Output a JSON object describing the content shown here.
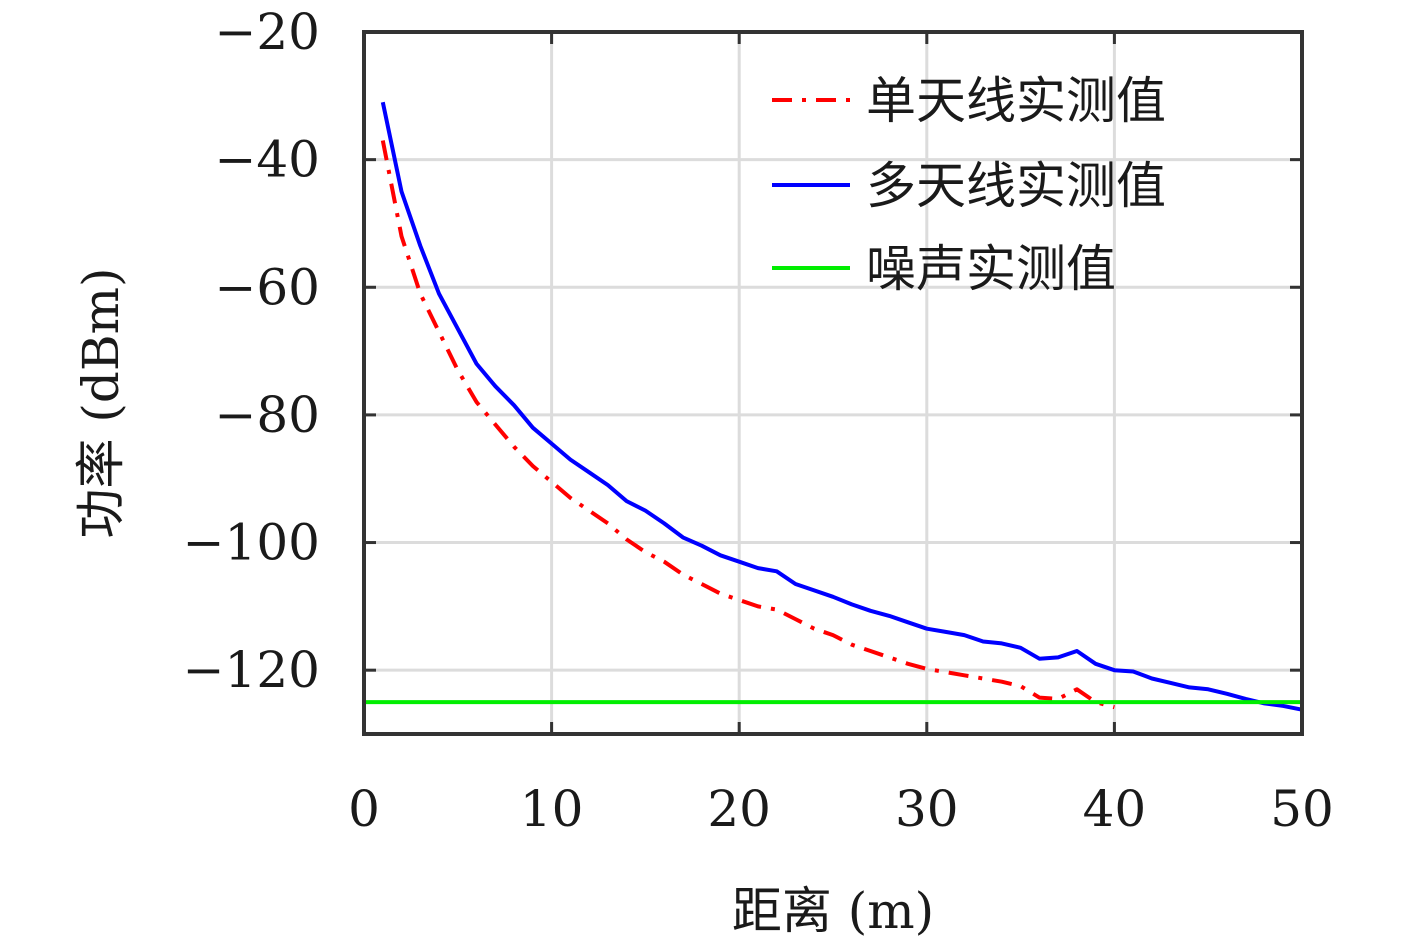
{
  "chart_data": {
    "type": "line",
    "xlabel": "距离 (m)",
    "ylabel": "功率 (dBm)",
    "xlim": [
      0,
      50
    ],
    "ylim": [
      -130,
      -20
    ],
    "xticks": [
      0,
      10,
      20,
      30,
      40,
      50
    ],
    "yticks": [
      -20,
      -40,
      -60,
      -80,
      -100,
      -120
    ],
    "grid": true,
    "legend_position": "top-right",
    "series": [
      {
        "name": "单天线实测值",
        "color": "#ff0000",
        "dash": "dash-dot",
        "x": [
          1,
          2,
          3,
          4,
          5,
          6,
          7,
          8,
          9,
          10,
          11,
          12,
          13,
          14,
          15,
          16,
          17,
          18,
          19,
          20,
          21,
          22,
          23,
          24,
          25,
          26,
          27,
          28,
          29,
          30,
          31,
          32,
          33,
          34,
          35,
          36,
          37,
          38,
          39,
          40
        ],
        "values": [
          -37,
          -52,
          -61,
          -67,
          -73,
          -78,
          -81.5,
          -85,
          -88,
          -90.5,
          -93,
          -95,
          -97,
          -99.5,
          -101.5,
          -103,
          -105,
          -106.5,
          -108,
          -109,
          -110,
          -110.5,
          -112,
          -113.5,
          -114.5,
          -116,
          -117,
          -118,
          -119,
          -119.8,
          -120.3,
          -120.8,
          -121.3,
          -121.8,
          -122.5,
          -124.3,
          -124.5,
          -123,
          -125,
          -125.8
        ]
      },
      {
        "name": "多天线实测值",
        "color": "#0000ff",
        "dash": "solid",
        "x": [
          1,
          2,
          3,
          4,
          5,
          6,
          7,
          8,
          9,
          10,
          11,
          12,
          13,
          14,
          15,
          16,
          17,
          18,
          19,
          20,
          21,
          22,
          23,
          24,
          25,
          26,
          27,
          28,
          29,
          30,
          31,
          32,
          33,
          34,
          35,
          36,
          37,
          38,
          39,
          40,
          41,
          42,
          43,
          44,
          45,
          46,
          47,
          48,
          49,
          50
        ],
        "values": [
          -31,
          -45,
          -53.5,
          -61,
          -66.5,
          -72,
          -75.5,
          -78.5,
          -82,
          -84.5,
          -87,
          -89,
          -91,
          -93.5,
          -95,
          -97,
          -99.2,
          -100.5,
          -102,
          -103,
          -104,
          -104.5,
          -106.5,
          -107.5,
          -108.5,
          -109.7,
          -110.7,
          -111.5,
          -112.5,
          -113.5,
          -114,
          -114.5,
          -115.5,
          -115.8,
          -116.5,
          -118.2,
          -118,
          -117,
          -119,
          -120,
          -120.2,
          -121.3,
          -122,
          -122.7,
          -123,
          -123.7,
          -124.5,
          -125.2,
          -125.6,
          -126.2
        ]
      },
      {
        "name": "噪声实测值",
        "color": "#00ee00",
        "dash": "solid",
        "x": [
          0,
          50
        ],
        "values": [
          -125,
          -125
        ]
      }
    ]
  }
}
